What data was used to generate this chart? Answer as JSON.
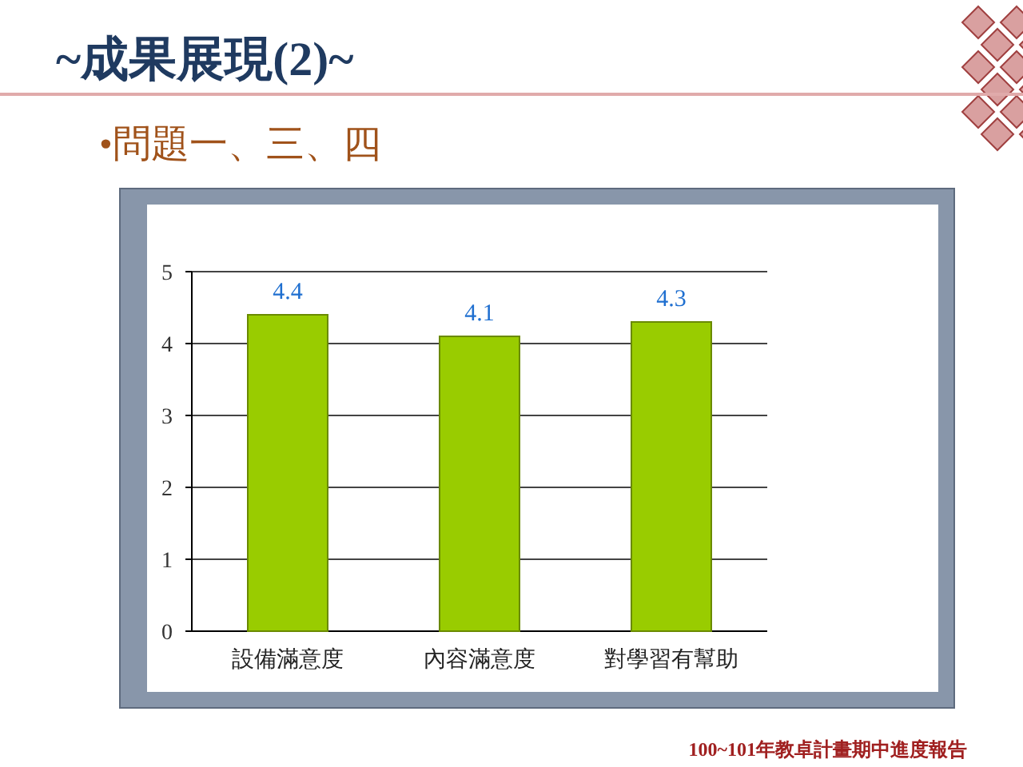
{
  "chart_data": {
    "type": "bar",
    "title": "~成果展現(2)~",
    "subtitle": "•問題一、三、四",
    "annotations": [
      "100~101年教卓計畫期中進度報告"
    ],
    "categories": [
      "設備滿意度",
      "內容滿意度",
      "對學習有幫助"
    ],
    "values": [
      4.4,
      4.1,
      4.3
    ],
    "color": "#99cc00",
    "ylim": [
      0,
      5
    ],
    "yticks": [
      0,
      1,
      2,
      3,
      4,
      5
    ],
    "grid": "y",
    "data_labels": true
  }
}
